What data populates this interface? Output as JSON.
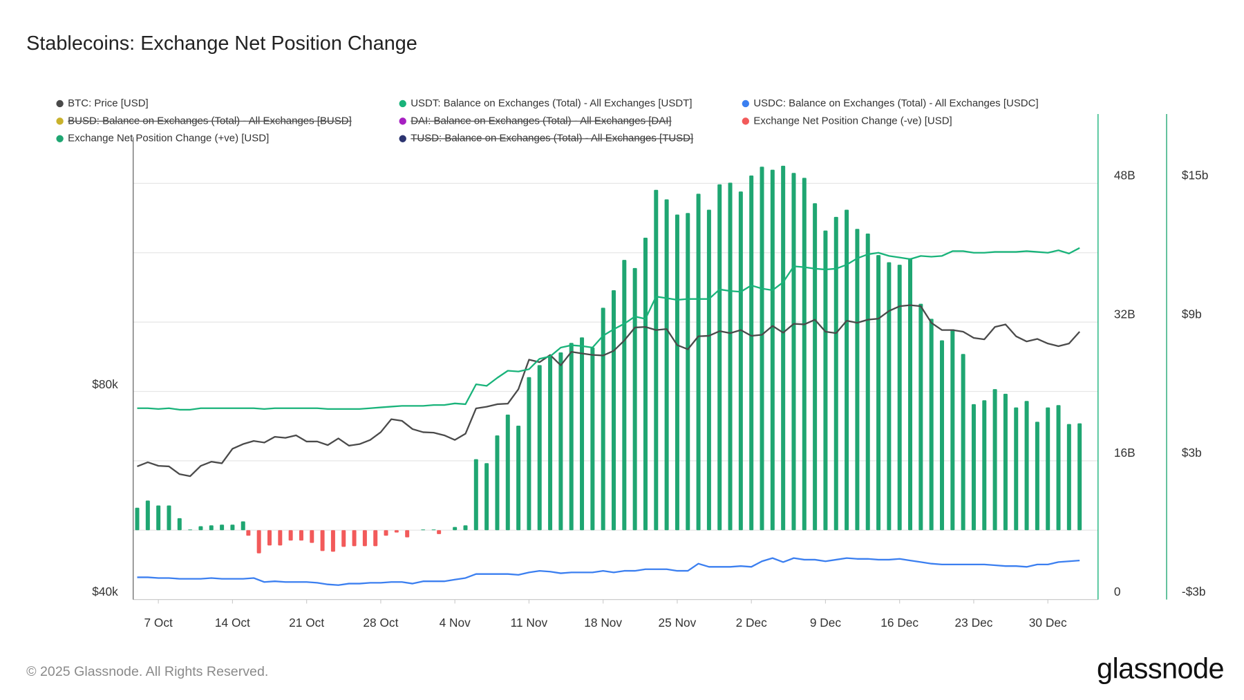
{
  "chart_data": {
    "type": "combo",
    "title": "Stablecoins: Exchange Net Position Change",
    "footer": "© 2025 Glassnode. All Rights Reserved.",
    "brand": "glassnode",
    "categories": [
      null,
      null,
      "7 Oct",
      null,
      null,
      null,
      null,
      null,
      null,
      "14 Oct",
      null,
      null,
      null,
      null,
      null,
      null,
      "21 Oct",
      null,
      null,
      null,
      null,
      null,
      null,
      "28 Oct",
      null,
      null,
      null,
      null,
      null,
      null,
      "4 Nov",
      null,
      null,
      null,
      null,
      null,
      null,
      "11 Nov",
      null,
      null,
      null,
      null,
      null,
      null,
      "18 Nov",
      null,
      null,
      null,
      null,
      null,
      null,
      "25 Nov",
      null,
      null,
      null,
      null,
      null,
      null,
      "2 Dec",
      null,
      null,
      null,
      null,
      null,
      null,
      "9 Dec",
      null,
      null,
      null,
      null,
      null,
      null,
      "16 Dec",
      null,
      null,
      null,
      null,
      null,
      null,
      "23 Dec",
      null,
      null,
      null,
      null,
      null,
      null,
      "30 Dec",
      null,
      null,
      null
    ],
    "ylim": [
      40000,
      133700
    ],
    "yticks": [
      {
        "value": 40000,
        "label": "$40k"
      },
      {
        "value": 80000,
        "label": "$80k"
      }
    ],
    "y2lim": [
      0,
      56
    ],
    "y2ticks": [
      0,
      {
        "value": 16,
        "label": "16B"
      },
      {
        "value": 32,
        "label": "32B"
      },
      {
        "value": 48,
        "label": "48B"
      }
    ],
    "y2gridlines": [
      8,
      16,
      24,
      32,
      40,
      48
    ],
    "y3lim": [
      -3,
      18
    ],
    "y3ticks": [
      {
        "value": -3,
        "label": "-$3b"
      },
      {
        "value": 3,
        "label": "$3b"
      },
      {
        "value": 9,
        "label": "$9b"
      },
      {
        "value": 15,
        "label": "$15b"
      }
    ],
    "grid": true,
    "series": [
      {
        "name": "BTC: Price [USD]",
        "color": "#4a4a4a",
        "kind": "line",
        "axis": "y",
        "values": [
          65700,
          66500,
          65800,
          65700,
          64200,
          63800,
          65800,
          66600,
          66300,
          69100,
          70000,
          70600,
          70300,
          71400,
          71200,
          71700,
          70500,
          70500,
          69800,
          71100,
          69700,
          70000,
          70800,
          72300,
          74800,
          74500,
          72900,
          72300,
          72200,
          71700,
          70800,
          72000,
          76900,
          77200,
          77700,
          77800,
          80600,
          86300,
          85800,
          87200,
          85200,
          87800,
          87500,
          87200,
          87100,
          88000,
          90000,
          92500,
          92600,
          92000,
          92200,
          89100,
          88300,
          90800,
          90900,
          91800,
          91400,
          92000,
          90900,
          91100,
          92800,
          91500,
          93200,
          93100,
          94000,
          91700,
          91400,
          93800,
          93400,
          94000,
          94200,
          95700,
          96600,
          96800,
          96600,
          93400,
          92000,
          92000,
          91700,
          90500,
          90200,
          92600,
          93100,
          90800,
          89800,
          90300,
          89400,
          88900,
          89400,
          91700
        ]
      },
      {
        "name": "USDT: Balance on Exchanges (Total) - All Exchanges [USDT]",
        "color": "#19b37a",
        "kind": "line",
        "axis": "y2",
        "values": [
          22.07,
          22.07,
          21.98,
          22.07,
          21.89,
          21.89,
          22.07,
          22.07,
          22.07,
          22.07,
          22.07,
          22.07,
          21.98,
          22.07,
          22.07,
          22.07,
          22.07,
          22.07,
          21.98,
          21.98,
          21.98,
          21.98,
          22.07,
          22.16,
          22.25,
          22.34,
          22.34,
          22.34,
          22.44,
          22.44,
          22.62,
          22.53,
          24.83,
          24.64,
          25.56,
          26.39,
          26.3,
          26.57,
          27.77,
          28.05,
          29.06,
          29.33,
          29.24,
          29.06,
          30.44,
          31.17,
          31.82,
          32.64,
          32.37,
          34.94,
          34.76,
          34.57,
          34.67,
          34.67,
          34.67,
          35.77,
          35.59,
          35.49,
          36.23,
          35.86,
          35.68,
          36.6,
          38.44,
          38.34,
          38.16,
          38.07,
          38.16,
          38.62,
          39.36,
          39.82,
          40.0,
          39.63,
          39.45,
          39.26,
          39.63,
          39.54,
          39.63,
          40.18,
          40.18,
          40.0,
          40.0,
          40.09,
          40.09,
          40.09,
          40.18,
          40.09,
          40.0,
          40.28,
          39.91,
          40.55
        ]
      },
      {
        "name": "USDC: Balance on Exchanges (Total) - All Exchanges [USDC]",
        "color": "#3b7ff0",
        "kind": "line",
        "axis": "y2",
        "values": [
          2.57,
          2.57,
          2.48,
          2.48,
          2.39,
          2.39,
          2.39,
          2.48,
          2.39,
          2.39,
          2.39,
          2.48,
          2.02,
          2.11,
          2.02,
          2.02,
          2.02,
          1.93,
          1.75,
          1.66,
          1.84,
          1.84,
          1.93,
          1.93,
          2.02,
          2.02,
          1.84,
          2.11,
          2.11,
          2.11,
          2.3,
          2.48,
          2.94,
          2.94,
          2.94,
          2.94,
          2.85,
          3.13,
          3.31,
          3.22,
          3.03,
          3.13,
          3.13,
          3.13,
          3.31,
          3.13,
          3.31,
          3.31,
          3.49,
          3.49,
          3.49,
          3.31,
          3.31,
          4.14,
          3.77,
          3.77,
          3.77,
          3.86,
          3.77,
          4.41,
          4.78,
          4.32,
          4.78,
          4.6,
          4.6,
          4.41,
          4.6,
          4.78,
          4.69,
          4.69,
          4.6,
          4.6,
          4.69,
          4.51,
          4.32,
          4.14,
          4.05,
          4.05,
          4.05,
          4.05,
          4.05,
          3.95,
          3.86,
          3.86,
          3.77,
          4.05,
          4.05,
          4.32,
          4.41,
          4.51
        ]
      },
      {
        "name": "BUSD: Balance on Exchanges (Total) - All Exchanges [BUSD]",
        "color": "#c9b22c",
        "kind": "line",
        "axis": "y2",
        "hidden": true
      },
      {
        "name": "DAI: Balance on Exchanges (Total) - All Exchanges [DAI]",
        "color": "#a61fc1",
        "kind": "line",
        "axis": "y2",
        "hidden": true
      },
      {
        "name": "Exchange Net Position Change (-ve) [USD]",
        "color": "#f25a5a",
        "kind": "bar",
        "axis": "y3",
        "values": [
          0,
          0,
          0,
          0,
          0,
          0,
          0,
          0,
          0,
          0,
          -0.24,
          -1.0,
          -0.66,
          -0.66,
          -0.45,
          -0.45,
          -0.55,
          -0.9,
          -0.93,
          -0.72,
          -0.69,
          -0.69,
          -0.69,
          -0.24,
          -0.1,
          -0.31,
          0,
          0,
          -0.17,
          0,
          0,
          0,
          0,
          0,
          0,
          0,
          0,
          0,
          0,
          0,
          0,
          0,
          0,
          0,
          0,
          0,
          0,
          0,
          0,
          0,
          0,
          0,
          0,
          0,
          0,
          0,
          0,
          0,
          0,
          0,
          0,
          0,
          0,
          0,
          0,
          0,
          0,
          0,
          0,
          0,
          0,
          0,
          0,
          0,
          0,
          0,
          0,
          0,
          0,
          0,
          0,
          0,
          0,
          0,
          0,
          0,
          0,
          0,
          0,
          0
        ]
      },
      {
        "name": "Exchange Net Position Change (+ve) [USD]",
        "color": "#1fa672",
        "kind": "bar",
        "axis": "y3",
        "values": [
          0.97,
          1.28,
          1.07,
          1.07,
          0.52,
          0.03,
          0.17,
          0.21,
          0.24,
          0.24,
          0.38,
          0,
          0,
          0,
          0,
          0,
          0,
          0,
          0,
          0,
          0,
          0,
          0,
          0,
          0,
          0,
          0,
          0.03,
          0.03,
          0,
          0.14,
          0.21,
          3.07,
          2.9,
          4.1,
          5.0,
          4.52,
          6.62,
          7.14,
          7.52,
          7.69,
          8.1,
          8.34,
          7.9,
          9.62,
          10.38,
          11.69,
          11.34,
          12.65,
          14.72,
          14.31,
          13.65,
          13.72,
          14.55,
          13.86,
          14.96,
          15.03,
          14.65,
          15.34,
          15.72,
          15.59,
          15.76,
          15.45,
          15.24,
          14.14,
          12.96,
          13.55,
          13.86,
          13.03,
          12.83,
          11.9,
          11.59,
          11.48,
          11.76,
          9.79,
          9.14,
          8.21,
          8.69,
          7.62,
          5.45,
          5.62,
          6.1,
          5.9,
          5.31,
          5.59,
          4.69,
          5.31,
          5.41,
          4.59,
          4.62
        ]
      },
      {
        "name": "TUSD: Balance on Exchanges (Total) - All Exchanges [TUSD]",
        "color": "#2c3470",
        "kind": "line",
        "axis": "y2",
        "hidden": true
      }
    ]
  }
}
